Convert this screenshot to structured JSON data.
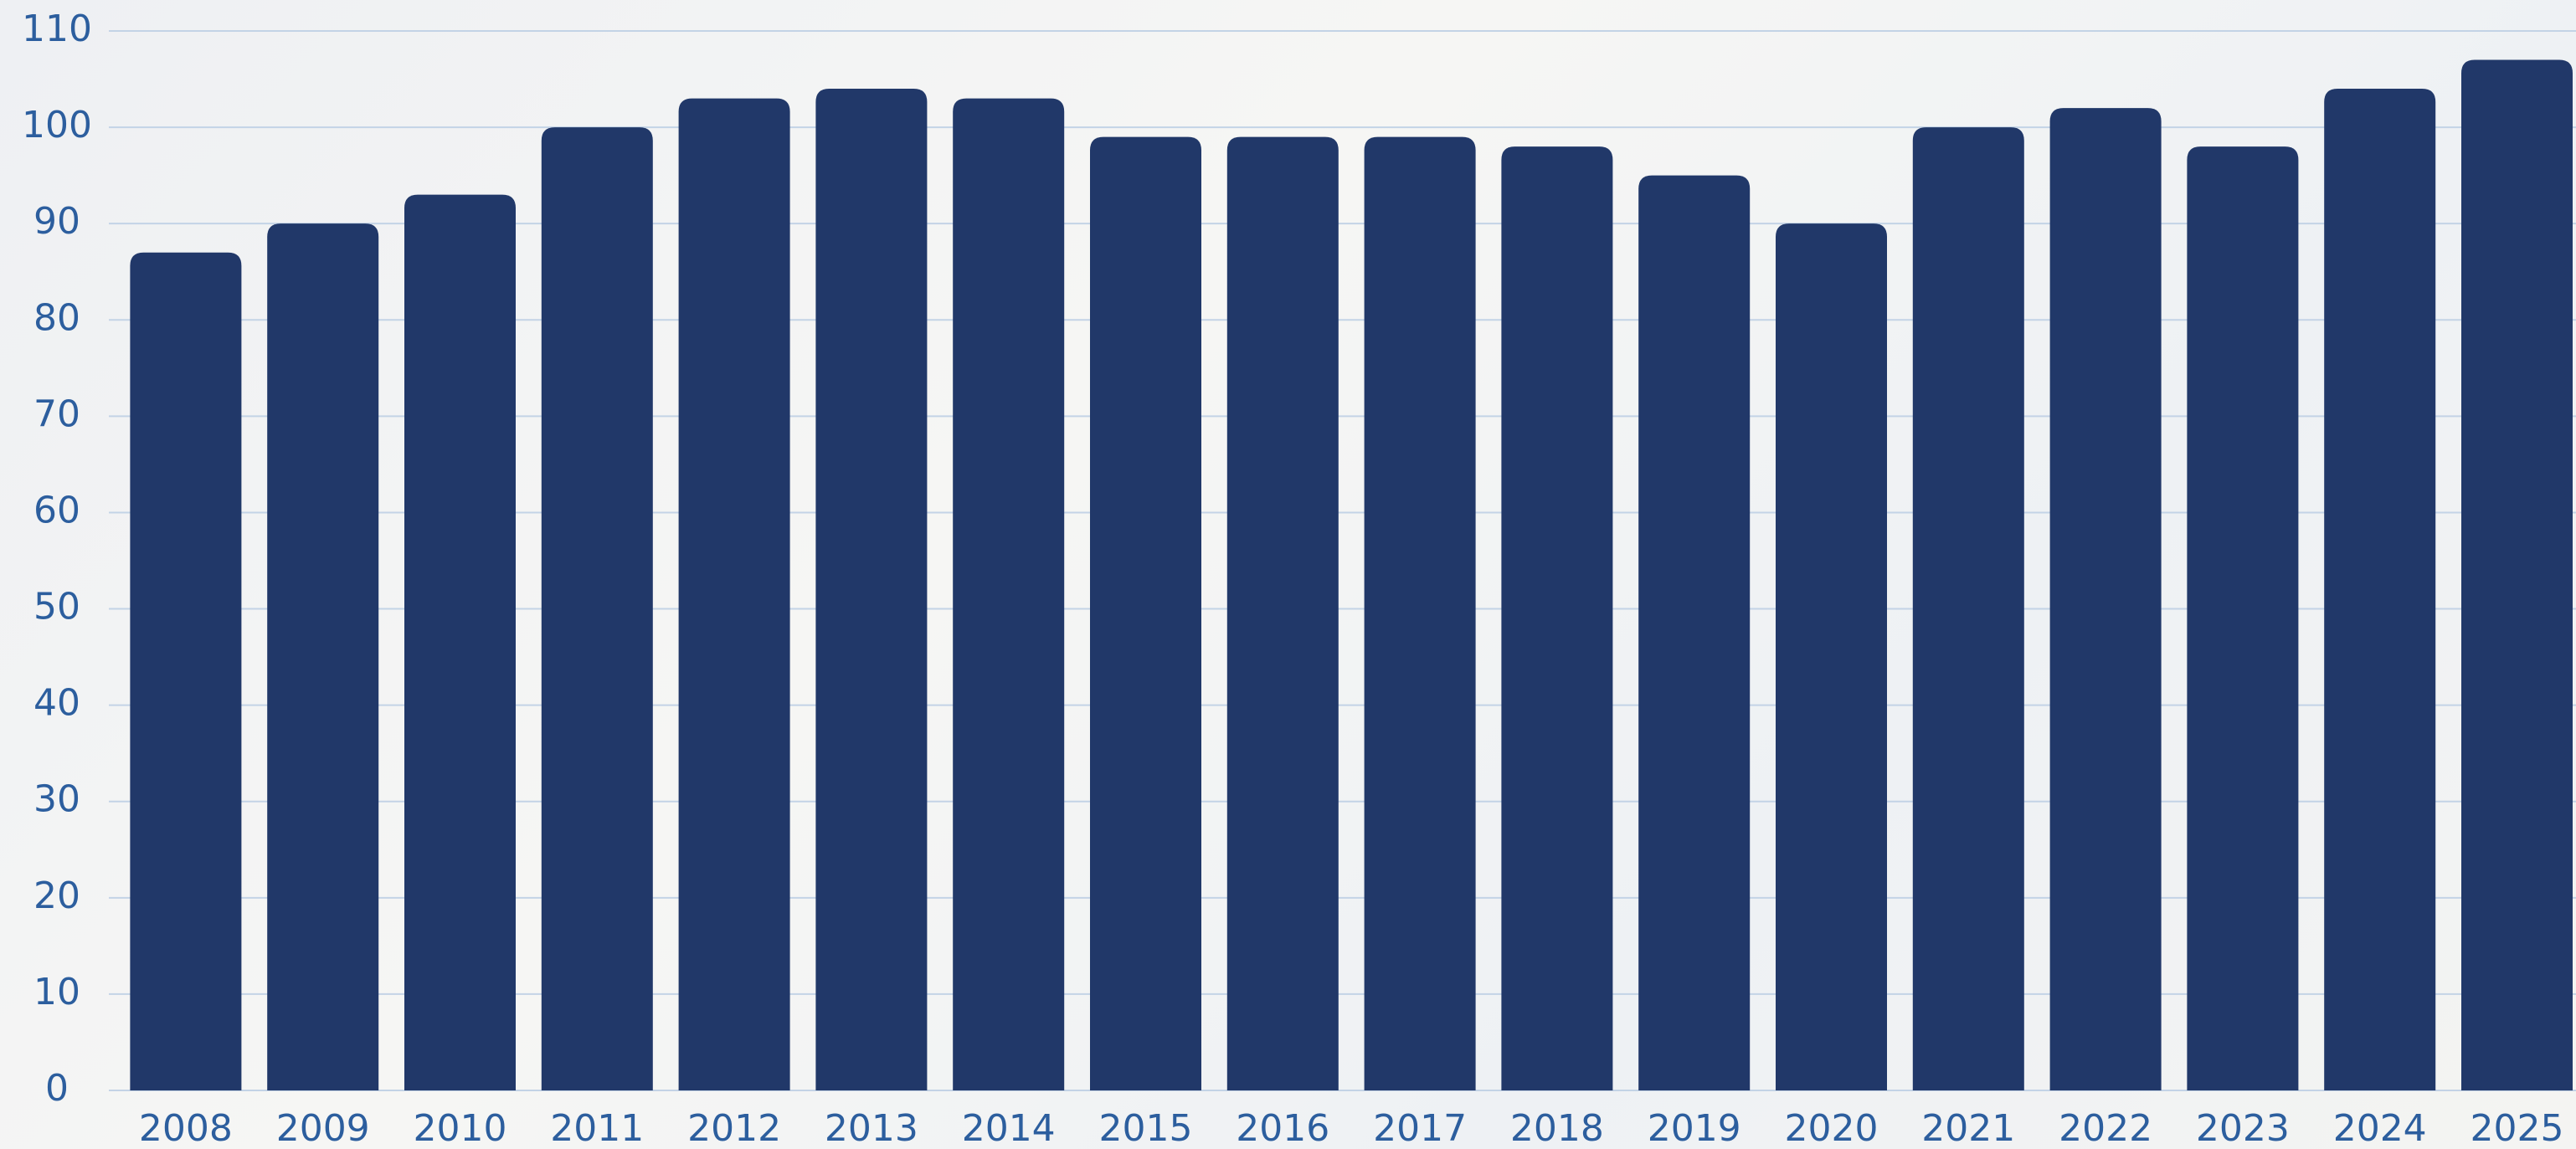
{
  "chart_data": {
    "type": "bar",
    "categories": [
      "2008",
      "2009",
      "2010",
      "2011",
      "2012",
      "2013",
      "2014",
      "2015",
      "2016",
      "2017",
      "2018",
      "2019",
      "2020",
      "2021",
      "2022",
      "2023",
      "2024",
      "2025"
    ],
    "values": [
      87,
      90,
      93,
      100,
      103,
      104,
      103,
      99,
      99,
      99,
      98,
      95,
      90,
      100,
      102,
      98,
      104,
      107
    ],
    "color": "#213869",
    "ylim": [
      0,
      110
    ],
    "yticks": [
      0,
      10,
      20,
      30,
      40,
      50,
      60,
      70,
      80,
      90,
      100,
      110
    ],
    "grid": true
  }
}
